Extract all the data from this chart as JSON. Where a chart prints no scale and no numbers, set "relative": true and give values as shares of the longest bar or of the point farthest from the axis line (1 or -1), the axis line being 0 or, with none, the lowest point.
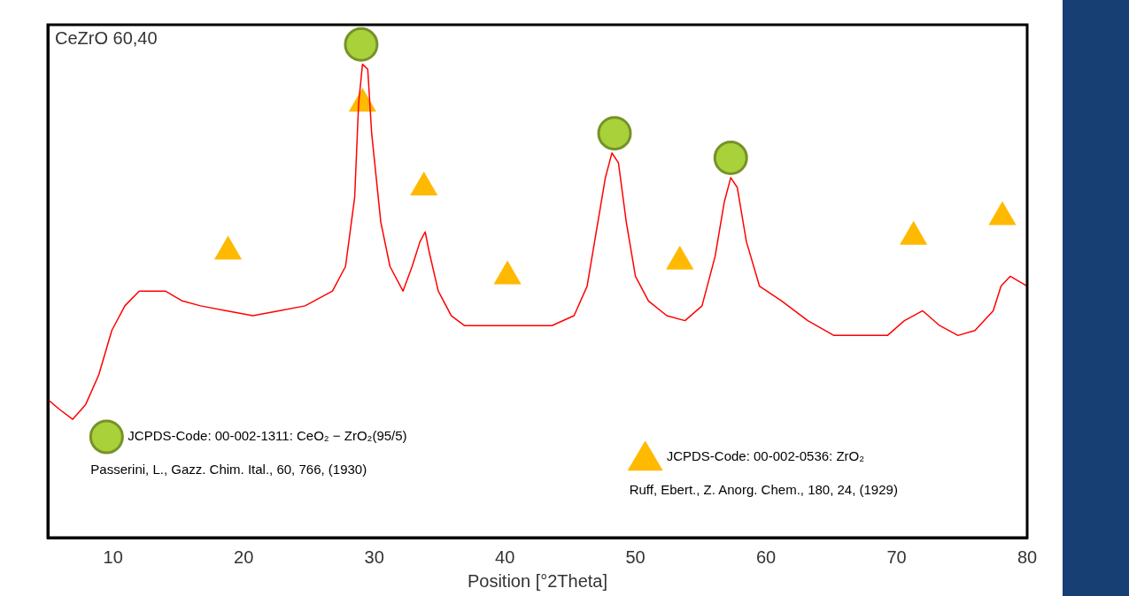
{
  "chart_data": {
    "type": "line",
    "title": "CeZrO 60,40",
    "xlabel": "Position [°2Theta]",
    "xlim": [
      5,
      80
    ],
    "xticks": [
      10,
      20,
      30,
      40,
      50,
      60,
      70,
      80
    ],
    "relative": true,
    "grid": false,
    "legend": "bottom",
    "annotations": [
      "Passerini, L., Gazz. Chim. Ital., 60, 766, (1930)",
      "Ruff, Ebert., Z. Anorg. Chem., 180, 24, (1929)"
    ],
    "series": [
      {
        "type": "line",
        "color": "#ff0000",
        "marker": "none",
        "x": [
          5.0,
          5.9,
          6.9,
          7.9,
          8.9,
          9.9,
          10.9,
          12.0,
          13.0,
          14.0,
          15.3,
          16.7,
          18.7,
          20.7,
          22.7,
          24.7,
          26.8,
          27.8,
          28.5,
          28.8,
          29.1,
          29.5,
          29.8,
          30.5,
          31.2,
          32.2,
          32.9,
          33.5,
          33.9,
          34.2,
          34.9,
          35.9,
          36.9,
          38.9,
          41.0,
          43.6,
          45.3,
          46.3,
          47.0,
          47.7,
          48.2,
          48.7,
          49.3,
          50.0,
          51.0,
          52.4,
          53.8,
          55.1,
          56.1,
          56.8,
          57.3,
          57.8,
          58.5,
          59.5,
          61.2,
          63.2,
          65.2,
          67.2,
          69.3,
          70.6,
          72.0,
          73.3,
          74.7,
          76.0,
          77.4,
          78.0,
          78.7,
          80.0
        ],
        "values": [
          0.28,
          0.26,
          0.24,
          0.27,
          0.33,
          0.42,
          0.47,
          0.5,
          0.5,
          0.5,
          0.48,
          0.47,
          0.46,
          0.45,
          0.46,
          0.47,
          0.5,
          0.55,
          0.69,
          0.88,
          0.96,
          0.95,
          0.82,
          0.64,
          0.55,
          0.5,
          0.55,
          0.6,
          0.62,
          0.58,
          0.5,
          0.45,
          0.43,
          0.43,
          0.43,
          0.43,
          0.45,
          0.51,
          0.62,
          0.73,
          0.78,
          0.76,
          0.64,
          0.53,
          0.48,
          0.45,
          0.44,
          0.47,
          0.57,
          0.68,
          0.73,
          0.71,
          0.6,
          0.51,
          0.48,
          0.44,
          0.41,
          0.41,
          0.41,
          0.44,
          0.46,
          0.43,
          0.41,
          0.42,
          0.46,
          0.51,
          0.53,
          0.51
        ]
      },
      {
        "type": "scatter",
        "name": "JCPDS-Code: 00-002-1311: CeO₂ − ZrO₂(95/5)",
        "color": "#a8d13a",
        "marker": "circle",
        "x": [
          29.0,
          48.4,
          57.3
        ],
        "values": [
          1,
          0.82,
          0.77
        ]
      },
      {
        "type": "scatter",
        "name": "JCPDS-Code: 00-002-0536: ZrO₂",
        "color": "#ffb900",
        "marker": "triangle",
        "x": [
          18.8,
          29.1,
          33.8,
          40.2,
          53.4,
          71.3,
          78.1
        ],
        "values": [
          0.58,
          0.88,
          0.71,
          0.53,
          0.56,
          0.61,
          0.65
        ]
      }
    ]
  }
}
